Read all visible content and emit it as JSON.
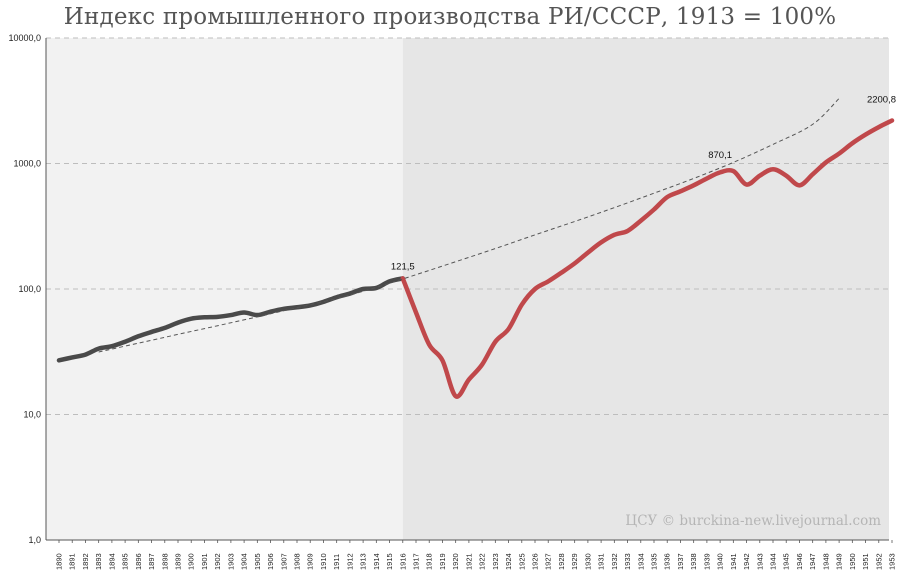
{
  "chart_data": {
    "type": "line",
    "title": "Индекс промышленного производства РИ/СССР, 1913 = 100%",
    "xlabel": "",
    "ylabel": "",
    "yscale": "log",
    "ylim": [
      1,
      10000
    ],
    "xlim": [
      1890,
      1953
    ],
    "grid": true,
    "y_ticks": [
      "1,0",
      "10,0",
      "100,0",
      "1000,0",
      "10000,0"
    ],
    "x_ticks": [
      "1890",
      "1891",
      "1892",
      "1893",
      "1894",
      "1895",
      "1896",
      "1897",
      "1898",
      "1899",
      "1900",
      "1901",
      "1902",
      "1903",
      "1904",
      "1905",
      "1906",
      "1907",
      "1908",
      "1909",
      "1910",
      "1911",
      "1912",
      "1913",
      "1914",
      "1915",
      "1916",
      "1917",
      "1918",
      "1919",
      "1920",
      "1921",
      "1922",
      "1923",
      "1924",
      "1925",
      "1926",
      "1927",
      "1928",
      "1929",
      "1930",
      "1931",
      "1932",
      "1933",
      "1934",
      "1935",
      "1936",
      "1937",
      "1938",
      "1939",
      "1940",
      "1941",
      "1942",
      "1943",
      "1944",
      "1945",
      "1946",
      "1947",
      "1948",
      "1949",
      "1950",
      "1951",
      "1952",
      "1953"
    ],
    "regions": [
      {
        "from": 1890,
        "to": 1916,
        "color": "#f2f2f2"
      },
      {
        "from": 1916,
        "to": 1953,
        "color": "#e6e6e6"
      }
    ],
    "series": [
      {
        "color": "#4a4a4a",
        "x": [
          1890,
          1891,
          1892,
          1893,
          1894,
          1895,
          1896,
          1897,
          1898,
          1899,
          1900,
          1901,
          1902,
          1903,
          1904,
          1905,
          1906,
          1907,
          1908,
          1909,
          1910,
          1911,
          1912,
          1913,
          1914,
          1915,
          1916
        ],
        "y": [
          27,
          28.5,
          30,
          33.5,
          35,
          38,
          42,
          45.5,
          49,
          54,
          58,
          59.5,
          60,
          62,
          65,
          62,
          66,
          69.5,
          71.5,
          74,
          79,
          86,
          92,
          100,
          102,
          115,
          121.5
        ]
      },
      {
        "color": "#c0484b",
        "x": [
          1916,
          1917,
          1918,
          1919,
          1920,
          1921,
          1922,
          1923,
          1924,
          1925,
          1926,
          1927,
          1928,
          1929,
          1930,
          1931,
          1932,
          1933,
          1934,
          1935,
          1936,
          1937,
          1938,
          1939,
          1940,
          1941,
          1942,
          1943,
          1944,
          1945,
          1946,
          1947,
          1948,
          1949,
          1950,
          1951,
          1952,
          1953
        ],
        "y": [
          121.5,
          65,
          36,
          27,
          14,
          19,
          25,
          38,
          48,
          75,
          100,
          115,
          135,
          160,
          195,
          235,
          270,
          290,
          350,
          430,
          540,
          600,
          670,
          760,
          850,
          870.1,
          680,
          800,
          900,
          800,
          670,
          820,
          1020,
          1200,
          1450,
          1700,
          1950,
          2200.8
        ]
      },
      {
        "dashed": true,
        "color": "#555555",
        "x": [
          1893,
          1896,
          1899,
          1902,
          1905,
          1908,
          1911,
          1914,
          1917,
          1920,
          1923,
          1926,
          1929,
          1932,
          1935,
          1938,
          1941,
          1944,
          1947,
          1949
        ],
        "y": [
          31.5,
          37,
          43.5,
          51,
          60,
          71,
          84,
          103,
          130,
          165,
          210,
          270,
          345,
          445,
          580,
          760,
          1020,
          1420,
          2050,
          3300
        ]
      }
    ],
    "annotations": [
      {
        "text": "121,5",
        "x": 1916,
        "y": 121.5
      },
      {
        "text": "870,1",
        "x": 1940,
        "y": 870.1
      },
      {
        "text": "2200,8",
        "x": 1953,
        "y": 2200.8
      }
    ],
    "credit": "ЦСУ © burckina-new.livejournal.com"
  }
}
